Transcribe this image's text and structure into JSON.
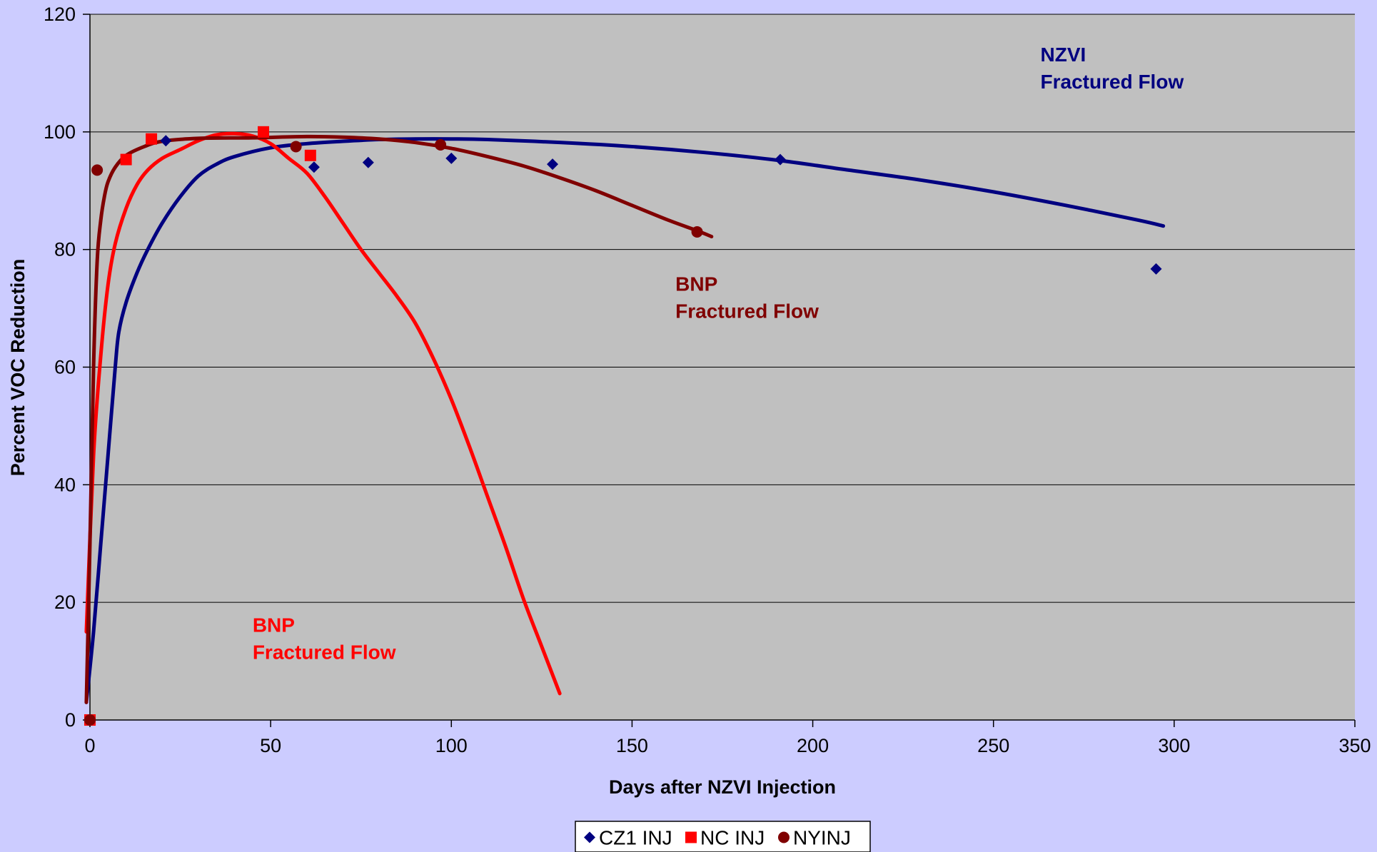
{
  "chart_data": {
    "type": "scatter",
    "title": "",
    "xlabel": "Days after NZVI Injection",
    "ylabel": "Percent VOC Reduction",
    "xlim": [
      0,
      350
    ],
    "ylim": [
      0,
      120
    ],
    "xticks": [
      0,
      50,
      100,
      150,
      200,
      250,
      300,
      350
    ],
    "yticks": [
      0,
      20,
      40,
      60,
      80,
      100,
      120
    ],
    "grid": "horizontal",
    "plot_background": "#C0C0C0",
    "page_background": "#CCCCFF",
    "legend_position": "bottom-center",
    "series": [
      {
        "name": "CZ1 INJ",
        "marker": "diamond",
        "color": "#000080",
        "points": [
          [
            0,
            0
          ],
          [
            21,
            98.5
          ],
          [
            62,
            94
          ],
          [
            77,
            94.8
          ],
          [
            100,
            95.5
          ],
          [
            128,
            94.5
          ],
          [
            191,
            95.3
          ],
          [
            295,
            76.7
          ]
        ]
      },
      {
        "name": "NC INJ",
        "marker": "square",
        "color": "#FF0000",
        "points": [
          [
            0,
            0
          ],
          [
            10,
            95.3
          ],
          [
            17,
            98.8
          ],
          [
            48,
            100
          ],
          [
            61,
            96
          ]
        ]
      },
      {
        "name": "NYINJ",
        "marker": "circle",
        "color": "#800000",
        "points": [
          [
            0,
            0
          ],
          [
            2,
            93.5
          ],
          [
            57,
            97.5
          ],
          [
            97,
            97.8
          ],
          [
            168,
            83
          ]
        ]
      }
    ],
    "trendlines": [
      {
        "series": "CZ1 INJ",
        "color": "#000080",
        "points": [
          [
            -1,
            3
          ],
          [
            1,
            15
          ],
          [
            3,
            30
          ],
          [
            5,
            45
          ],
          [
            7,
            60
          ],
          [
            8,
            66
          ],
          [
            10,
            71
          ],
          [
            13,
            76
          ],
          [
            16,
            80
          ],
          [
            20,
            84.5
          ],
          [
            25,
            89
          ],
          [
            30,
            92.5
          ],
          [
            35,
            94.5
          ],
          [
            40,
            95.8
          ],
          [
            50,
            97.3
          ],
          [
            60,
            98
          ],
          [
            70,
            98.4
          ],
          [
            80,
            98.7
          ],
          [
            90,
            98.8
          ],
          [
            100,
            98.8
          ],
          [
            110,
            98.7
          ],
          [
            130,
            98.2
          ],
          [
            150,
            97.5
          ],
          [
            170,
            96.5
          ],
          [
            190,
            95.2
          ],
          [
            210,
            93.5
          ],
          [
            230,
            91.8
          ],
          [
            250,
            89.8
          ],
          [
            270,
            87.5
          ],
          [
            290,
            85
          ],
          [
            297,
            84
          ]
        ]
      },
      {
        "series": "NC INJ",
        "color": "#FF0000",
        "points": [
          [
            -1,
            15
          ],
          [
            1,
            45
          ],
          [
            3,
            62
          ],
          [
            5,
            74
          ],
          [
            7,
            81
          ],
          [
            10,
            87
          ],
          [
            13,
            91
          ],
          [
            16,
            93.5
          ],
          [
            20,
            95.5
          ],
          [
            25,
            97
          ],
          [
            30,
            98.5
          ],
          [
            35,
            99.5
          ],
          [
            40,
            99.7
          ],
          [
            45,
            99.3
          ],
          [
            50,
            98
          ],
          [
            55,
            95.5
          ],
          [
            60,
            93
          ],
          [
            65,
            89
          ],
          [
            70,
            84.5
          ],
          [
            75,
            80
          ],
          [
            80,
            76
          ],
          [
            85,
            72
          ],
          [
            90,
            67.5
          ],
          [
            95,
            61.5
          ],
          [
            100,
            54.5
          ],
          [
            105,
            46.5
          ],
          [
            110,
            38
          ],
          [
            115,
            29.5
          ],
          [
            120,
            20.5
          ],
          [
            125,
            12.5
          ],
          [
            130,
            4.5
          ]
        ]
      },
      {
        "series": "NYINJ",
        "color": "#800000",
        "points": [
          [
            -1,
            3
          ],
          [
            0,
            30
          ],
          [
            1,
            60
          ],
          [
            2,
            78
          ],
          [
            3,
            85
          ],
          [
            4,
            89
          ],
          [
            5,
            91.5
          ],
          [
            7,
            94
          ],
          [
            10,
            96
          ],
          [
            15,
            97.5
          ],
          [
            20,
            98.4
          ],
          [
            30,
            98.9
          ],
          [
            45,
            99
          ],
          [
            60,
            99.2
          ],
          [
            70,
            99.1
          ],
          [
            80,
            98.8
          ],
          [
            90,
            98.2
          ],
          [
            100,
            97.2
          ],
          [
            110,
            95.8
          ],
          [
            120,
            94.2
          ],
          [
            130,
            92.2
          ],
          [
            140,
            90
          ],
          [
            150,
            87.5
          ],
          [
            160,
            85
          ],
          [
            168,
            83.2
          ],
          [
            172,
            82.2
          ]
        ]
      }
    ],
    "annotations": [
      {
        "lines": [
          "NZVI",
          "Fractured Flow"
        ],
        "color": "#000080",
        "x": 263,
        "y": 112
      },
      {
        "lines": [
          "BNP",
          "Fractured Flow"
        ],
        "color": "#800000",
        "x": 162,
        "y": 73
      },
      {
        "lines": [
          "BNP",
          "Fractured Flow"
        ],
        "color": "#FF0000",
        "x": 45,
        "y": 15
      }
    ]
  }
}
